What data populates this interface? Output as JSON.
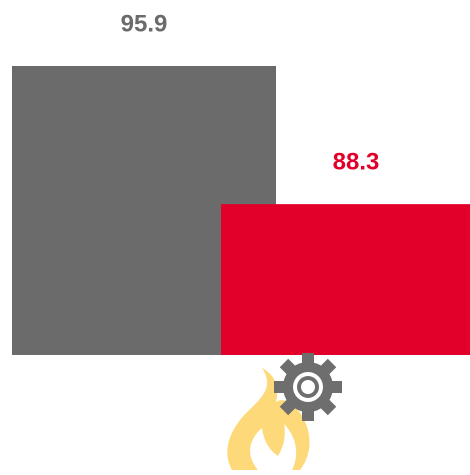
{
  "chart_data": {
    "type": "bar",
    "values": [
      95.9,
      88.3
    ],
    "colors": [
      "#6b6b6b",
      "#e2002a"
    ],
    "ylim": [
      80,
      97
    ]
  }
}
